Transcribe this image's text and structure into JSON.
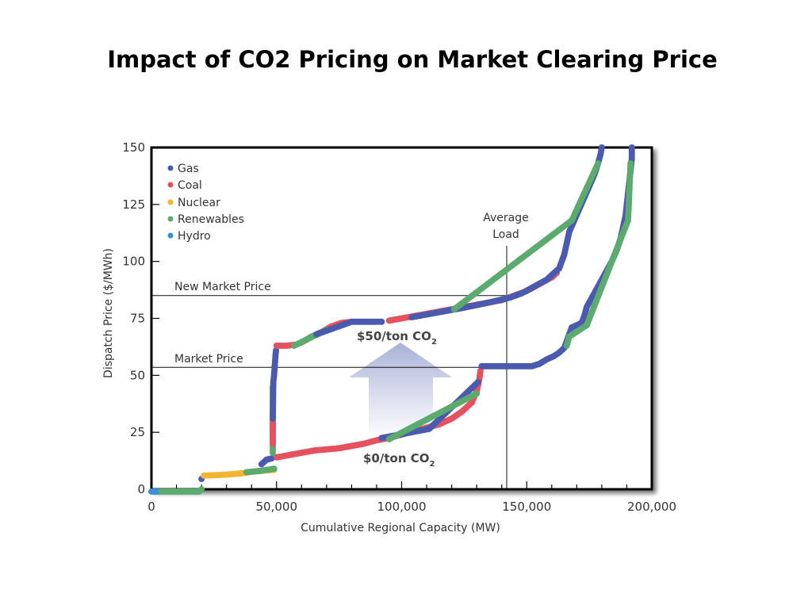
{
  "slide": {
    "title": "Impact of CO2 Pricing on Market Clearing Price"
  },
  "chart_data": {
    "type": "scatter",
    "title": "Impact of CO2 Pricing on Market Clearing Price",
    "xlabel": "Cumulative Regional Capacity (MW)",
    "ylabel": "Dispatch Price ($/MWh)",
    "xlim": [
      0,
      200000
    ],
    "ylim": [
      0,
      150
    ],
    "xticks": [
      0,
      50000,
      100000,
      150000,
      200000
    ],
    "xtick_labels": [
      "0",
      "50,000",
      "100,000",
      "150,000",
      "200,000"
    ],
    "yticks": [
      0,
      25,
      50,
      75,
      100,
      125,
      150
    ],
    "ytick_labels": [
      "0",
      "25",
      "50",
      "75",
      "100",
      "125",
      "150"
    ],
    "grid": false,
    "legend_position": "top-left",
    "colors": {
      "Gas": "#4a5aaf",
      "Coal": "#e5515f",
      "Nuclear": "#f2b531",
      "Renewables": "#5bab6e",
      "Hydro": "#3a8fd6"
    },
    "legend": [
      "Gas",
      "Coal",
      "Nuclear",
      "Renewables",
      "Hydro"
    ],
    "annotations": {
      "new_market_price": {
        "label": "New Market Price",
        "y": 85
      },
      "market_price": {
        "label": "Market Price",
        "y": 53.5
      },
      "average_load": {
        "label_line1": "Average",
        "label_line2": "Load",
        "x": 142000
      },
      "scenario_high": "$50/ton CO",
      "scenario_high_sub": "2",
      "scenario_low": "$0/ton CO",
      "scenario_low_sub": "2"
    },
    "series": [
      {
        "name": "$0/ton CO2 supply curve",
        "segments": [
          {
            "fuel": "Hydro",
            "points": [
              [
                0,
                -1
              ],
              [
                1500,
                -1
              ],
              [
                3000,
                -1
              ]
            ]
          },
          {
            "fuel": "Renewables",
            "points": [
              [
                4000,
                -1
              ],
              [
                8000,
                -1
              ],
              [
                12000,
                -1
              ],
              [
                16000,
                -1
              ],
              [
                19000,
                -1
              ],
              [
                20000,
                0
              ]
            ]
          },
          {
            "fuel": "Gas",
            "points": [
              [
                20000,
                4.5
              ]
            ]
          },
          {
            "fuel": "Nuclear",
            "points": [
              [
                21000,
                6
              ],
              [
                26000,
                6.2
              ],
              [
                31000,
                6.5
              ],
              [
                36000,
                7
              ],
              [
                41000,
                7.8
              ],
              [
                46000,
                8.3
              ],
              [
                49000,
                8.5
              ]
            ]
          },
          {
            "fuel": "Renewables",
            "points": [
              [
                38000,
                7.5
              ],
              [
                43000,
                8
              ],
              [
                49000,
                9
              ]
            ]
          },
          {
            "fuel": "Gas",
            "points": [
              [
                44000,
                11
              ],
              [
                46000,
                13
              ],
              [
                48000,
                13.5
              ]
            ]
          },
          {
            "fuel": "Coal",
            "points": [
              [
                50000,
                14
              ],
              [
                55000,
                15
              ],
              [
                60000,
                16
              ],
              [
                65000,
                17
              ],
              [
                70000,
                17.5
              ],
              [
                75000,
                18
              ],
              [
                80000,
                19
              ],
              [
                85000,
                20
              ],
              [
                90000,
                21.5
              ],
              [
                95000,
                22.5
              ],
              [
                100000,
                24
              ],
              [
                105000,
                25.5
              ],
              [
                110000,
                27
              ],
              [
                115000,
                28.5
              ],
              [
                120000,
                31
              ],
              [
                124000,
                34
              ],
              [
                128000,
                38
              ],
              [
                130000,
                43
              ],
              [
                131000,
                48
              ],
              [
                131500,
                52
              ]
            ]
          },
          {
            "fuel": "Gas",
            "points": [
              [
                92000,
                22.5
              ],
              [
                111000,
                26.5
              ],
              [
                130500,
                47
              ]
            ]
          },
          {
            "fuel": "Renewables",
            "points": [
              [
                95000,
                22
              ],
              [
                130000,
                42
              ]
            ]
          },
          {
            "fuel": "Gas",
            "points": [
              [
                132000,
                54
              ],
              [
                136000,
                54
              ],
              [
                140000,
                54
              ],
              [
                144000,
                54
              ],
              [
                148000,
                54
              ],
              [
                152000,
                54
              ],
              [
                155000,
                55
              ],
              [
                158000,
                57
              ],
              [
                161000,
                58.5
              ],
              [
                163000,
                60
              ],
              [
                165000,
                62
              ],
              [
                166000,
                65
              ],
              [
                167000,
                68
              ],
              [
                168000,
                71
              ],
              [
                170000,
                72
              ],
              [
                172000,
                73
              ],
              [
                173000,
                76
              ],
              [
                174000,
                80
              ],
              [
                176000,
                84
              ],
              [
                178000,
                88
              ],
              [
                180000,
                92
              ],
              [
                182000,
                96
              ],
              [
                184000,
                100
              ],
              [
                186000,
                105
              ],
              [
                187500,
                110
              ],
              [
                188500,
                115
              ],
              [
                189500,
                120
              ],
              [
                190000,
                125
              ],
              [
                190500,
                130
              ],
              [
                191000,
                135
              ],
              [
                191500,
                140
              ],
              [
                192000,
                145
              ],
              [
                192000,
                150
              ]
            ]
          },
          {
            "fuel": "Renewables",
            "points": [
              [
                166000,
                63
              ],
              [
                167000,
                67
              ],
              [
                174000,
                72
              ],
              [
                190500,
                118
              ],
              [
                191500,
                143
              ]
            ]
          }
        ]
      },
      {
        "name": "$50/ton CO2 supply curve",
        "segments": [
          {
            "fuel": "Renewables",
            "points": [
              [
                48500,
                16
              ],
              [
                48500,
                22
              ],
              [
                48500,
                42
              ],
              [
                48500,
                45
              ]
            ]
          },
          {
            "fuel": "Coal",
            "points": [
              [
                48500,
                20
              ],
              [
                48500,
                33
              ]
            ]
          },
          {
            "fuel": "Gas",
            "points": [
              [
                48500,
                31
              ],
              [
                48700,
                47
              ],
              [
                49000,
                50
              ],
              [
                49200,
                53
              ],
              [
                49400,
                56
              ],
              [
                49600,
                59
              ],
              [
                49800,
                61
              ]
            ]
          },
          {
            "fuel": "Coal",
            "points": [
              [
                50000,
                63
              ],
              [
                54000,
                63
              ],
              [
                58000,
                63.5
              ],
              [
                61000,
                65
              ],
              [
                64000,
                67
              ],
              [
                68000,
                69
              ],
              [
                72000,
                71.5
              ],
              [
                76000,
                73
              ],
              [
                80000,
                73.5
              ]
            ]
          },
          {
            "fuel": "Renewables",
            "points": [
              [
                57000,
                63
              ],
              [
                70000,
                70
              ]
            ]
          },
          {
            "fuel": "Gas",
            "points": [
              [
                66000,
                68
              ],
              [
                80000,
                73.5
              ],
              [
                84000,
                73.5
              ],
              [
                88000,
                73.5
              ],
              [
                92000,
                73.5
              ]
            ]
          },
          {
            "fuel": "Coal",
            "points": [
              [
                95000,
                74
              ],
              [
                100000,
                75
              ],
              [
                105000,
                76
              ],
              [
                110000,
                77
              ],
              [
                115000,
                78
              ],
              [
                120000,
                79
              ],
              [
                125000,
                80
              ],
              [
                130000,
                81
              ],
              [
                135000,
                82
              ],
              [
                140000,
                83
              ],
              [
                145000,
                85
              ],
              [
                150000,
                87
              ],
              [
                155000,
                90
              ],
              [
                160000,
                93
              ],
              [
                162000,
                95
              ]
            ]
          },
          {
            "fuel": "Gas",
            "points": [
              [
                104000,
                75.5
              ],
              [
                114000,
                77.5
              ],
              [
                124000,
                79.5
              ],
              [
                133000,
                81.5
              ],
              [
                143000,
                84
              ],
              [
                148000,
                86
              ],
              [
                153000,
                89
              ],
              [
                158000,
                92
              ],
              [
                163000,
                97
              ],
              [
                164000,
                100
              ],
              [
                165000,
                103
              ],
              [
                166000,
                108
              ],
              [
                167000,
                113
              ],
              [
                169000,
                118
              ],
              [
                171000,
                123
              ],
              [
                173000,
                128
              ],
              [
                175000,
                133
              ],
              [
                177000,
                138
              ],
              [
                178500,
                143
              ],
              [
                179500,
                147
              ],
              [
                180000,
                150
              ]
            ]
          },
          {
            "fuel": "Renewables",
            "points": [
              [
                121000,
                79
              ],
              [
                168000,
                118
              ],
              [
                178500,
                143
              ]
            ]
          }
        ]
      }
    ]
  }
}
